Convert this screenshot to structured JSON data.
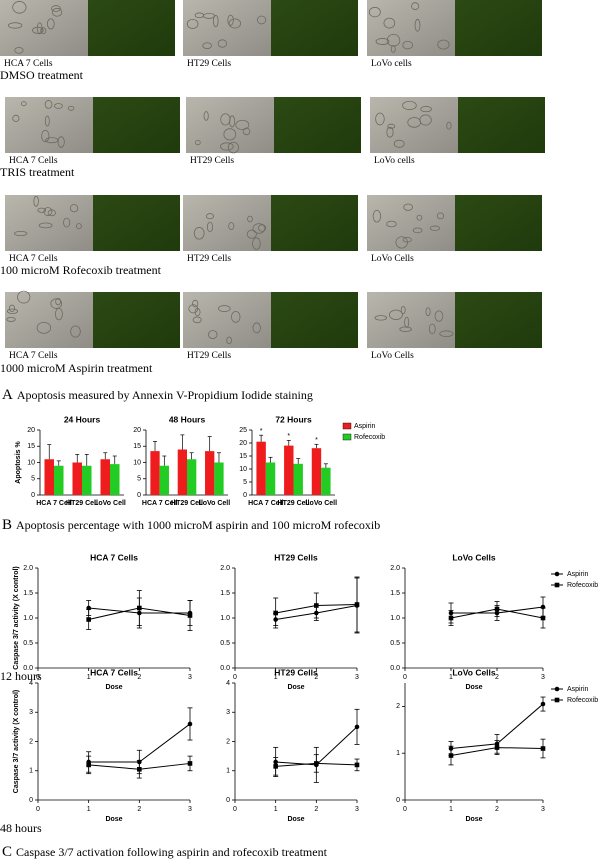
{
  "panel_a": {
    "rows": [
      {
        "labels": [
          "HCA 7 Cells",
          "HT29 Cells",
          "LoVo cells"
        ],
        "treatment": "DMSO treatment"
      },
      {
        "labels": [
          "HCA 7 Cells",
          "HT29 Cells",
          "LoVo cells"
        ],
        "treatment": "TRIS treatment"
      },
      {
        "labels": [
          "HCA 7 Cells",
          "HT29 Cells",
          "LoVo Cells"
        ],
        "treatment": "100 microM Rofecoxib treatment"
      },
      {
        "labels": [
          "HCA 7 Cells",
          "HT29 Cells",
          "LoVo Cells"
        ],
        "treatment": "1000 microM Aspirin treatment"
      }
    ],
    "caption": {
      "letter": "A",
      "text": "Apoptosis measured by Annexin V-Propidium Iodide staining"
    }
  },
  "panel_b": {
    "caption": {
      "letter": "B",
      "text": "Apoptosis percentage with 1000 microM aspirin and 100 microM rofecoxib"
    }
  },
  "panel_c": {
    "time_labels": [
      "12 hours",
      "48 hours"
    ],
    "caption": {
      "letter": "C",
      "text": "Caspase 3/7 activation following aspirin and rofecoxib treatment"
    }
  },
  "chart_data": [
    {
      "type": "bar",
      "title": "24 Hours",
      "ylabel": "Apoptosis %",
      "categories": [
        "HCA 7 Cell",
        "HT29 Cell",
        "LoVo Cell"
      ],
      "series": [
        {
          "name": "Aspirin",
          "color": "#ee1c1c",
          "values": [
            11,
            10,
            11
          ],
          "errors": [
            4.5,
            2.5,
            2
          ]
        },
        {
          "name": "Rofecoxib",
          "color": "#22cc22",
          "values": [
            9,
            9,
            9.5
          ],
          "errors": [
            1.5,
            3.5,
            2.5
          ]
        }
      ],
      "ylim": [
        0,
        20
      ],
      "yticks": [
        0,
        5,
        10,
        15,
        20
      ]
    },
    {
      "type": "bar",
      "title": "48 Hours",
      "categories": [
        "HCA 7 Cell",
        "HT29 Cell",
        "LoVo Cell"
      ],
      "series": [
        {
          "name": "Aspirin",
          "color": "#ee1c1c",
          "values": [
            13.5,
            14,
            13.5
          ],
          "errors": [
            3,
            4.5,
            4.5
          ]
        },
        {
          "name": "Rofecoxib",
          "color": "#22cc22",
          "values": [
            9,
            11,
            10
          ],
          "errors": [
            3,
            2,
            3
          ]
        }
      ],
      "ylim": [
        0,
        20
      ],
      "yticks": [
        0,
        5,
        10,
        15,
        20
      ]
    },
    {
      "type": "bar",
      "title": "72 Hours",
      "categories": [
        "HCA 7 Cell",
        "HT29 Cell",
        "LoVo Cell"
      ],
      "series": [
        {
          "name": "Aspirin",
          "color": "#ee1c1c",
          "values": [
            20.5,
            19,
            18
          ],
          "errors": [
            2.5,
            2,
            1.5
          ]
        },
        {
          "name": "Rofecoxib",
          "color": "#22cc22",
          "values": [
            12.5,
            12,
            10.5
          ],
          "errors": [
            2,
            2,
            1.5
          ]
        }
      ],
      "annotations": [
        "*",
        "*",
        "*"
      ],
      "legend": "right",
      "ylim": [
        0,
        25
      ],
      "yticks": [
        0,
        5,
        10,
        15,
        20,
        25
      ]
    },
    {
      "type": "line",
      "title": "HCA 7 Cells",
      "xlabel": "Dose",
      "ylabel": "Caspase 3/7 activity (X control)",
      "x": [
        1,
        2,
        3
      ],
      "series": [
        {
          "name": "Aspirin",
          "color": "#000000",
          "marker": "circle",
          "values": [
            1.2,
            1.1,
            1.1
          ],
          "errors": [
            0.15,
            0.3,
            0.25
          ]
        },
        {
          "name": "Rofecoxib",
          "color": "#000000",
          "marker": "square",
          "values": [
            0.97,
            1.2,
            1.05
          ],
          "errors": [
            0.2,
            0.35,
            0.3
          ]
        }
      ],
      "xlim": [
        0,
        3
      ],
      "xticks": [
        0,
        1,
        2,
        3
      ],
      "ylim": [
        0,
        2
      ],
      "yticks": [
        {
          "value": 0,
          "label": "0.0"
        },
        {
          "value": 0.5,
          "label": "0.5"
        },
        {
          "value": 1,
          "label": "1.0"
        },
        {
          "value": 1.5,
          "label": "1.5"
        },
        {
          "value": 2,
          "label": "2.0"
        }
      ]
    },
    {
      "type": "line",
      "title": "HT29 Cells",
      "xlabel": "Dose",
      "x": [
        1,
        2,
        3
      ],
      "series": [
        {
          "name": "Aspirin",
          "color": "#000000",
          "marker": "circle",
          "values": [
            0.97,
            1.1,
            1.25
          ],
          "errors": [
            0.12,
            0.15,
            0.55
          ]
        },
        {
          "name": "Rofecoxib",
          "color": "#000000",
          "marker": "square",
          "values": [
            1.1,
            1.25,
            1.27
          ],
          "errors": [
            0.3,
            0.25,
            0.55
          ]
        }
      ],
      "xlim": [
        0,
        3
      ],
      "xticks": [
        0,
        1,
        2,
        3
      ],
      "ylim": [
        0,
        2
      ],
      "yticks": [
        {
          "value": 0,
          "label": "0.0"
        },
        {
          "value": 0.5,
          "label": "0.5"
        },
        {
          "value": 1,
          "label": "1.0"
        },
        {
          "value": 1.5,
          "label": "1.5"
        },
        {
          "value": 2,
          "label": "2.0"
        }
      ]
    },
    {
      "type": "line",
      "title": "LoVo Cells",
      "xlabel": "Dose",
      "x": [
        1,
        2,
        3
      ],
      "legend": "right",
      "series": [
        {
          "name": "Aspirin",
          "color": "#000000",
          "marker": "circle",
          "values": [
            1.1,
            1.1,
            1.22
          ],
          "errors": [
            0.2,
            0.15,
            0.2
          ]
        },
        {
          "name": "Rofecoxib",
          "color": "#000000",
          "marker": "square",
          "values": [
            1.0,
            1.18,
            1.0
          ],
          "errors": [
            0.15,
            0.15,
            0.2
          ]
        }
      ],
      "xlim": [
        0,
        3
      ],
      "xticks": [
        0,
        1,
        2,
        3
      ],
      "ylim": [
        0,
        2
      ],
      "yticks": [
        {
          "value": 0,
          "label": "0.0"
        },
        {
          "value": 0.5,
          "label": "0.5"
        },
        {
          "value": 1,
          "label": "1.0"
        },
        {
          "value": 1.5,
          "label": "1.5"
        },
        {
          "value": 2,
          "label": "2.0"
        }
      ]
    },
    {
      "type": "line",
      "title": "HCA 7 Cells",
      "xlabel": "Dose",
      "ylabel": "Caspase 3/7 activity (X control)",
      "x": [
        1,
        2,
        3
      ],
      "series": [
        {
          "name": "Aspirin",
          "color": "#000000",
          "marker": "circle",
          "values": [
            1.3,
            1.3,
            2.6
          ],
          "errors": [
            0.35,
            0.4,
            0.55
          ]
        },
        {
          "name": "Rofecoxib",
          "color": "#000000",
          "marker": "square",
          "values": [
            1.2,
            1.05,
            1.25
          ],
          "errors": [
            0.3,
            0.3,
            0.25
          ]
        }
      ],
      "xlim": [
        0,
        3
      ],
      "xticks": [
        0,
        1,
        2,
        3
      ],
      "ylim": [
        0,
        4
      ],
      "yticks": [
        0,
        1,
        2,
        3,
        4
      ]
    },
    {
      "type": "line",
      "title": "HT29 Cells",
      "xlabel": "Dose",
      "x": [
        1,
        2,
        3
      ],
      "series": [
        {
          "name": "Aspirin",
          "color": "#000000",
          "marker": "circle",
          "values": [
            1.3,
            1.2,
            2.5
          ],
          "errors": [
            0.5,
            0.6,
            0.6
          ]
        },
        {
          "name": "Rofecoxib",
          "color": "#000000",
          "marker": "square",
          "values": [
            1.15,
            1.25,
            1.2
          ],
          "errors": [
            0.3,
            0.3,
            0.2
          ]
        }
      ],
      "xlim": [
        0,
        3
      ],
      "xticks": [
        0,
        1,
        2,
        3
      ],
      "ylim": [
        0,
        4
      ],
      "yticks": [
        0,
        1,
        2,
        3,
        4
      ]
    },
    {
      "type": "line",
      "title": "LoVo Cells",
      "xlabel": "Dose",
      "x": [
        1,
        2,
        3
      ],
      "legend": "right",
      "series": [
        {
          "name": "Aspirin",
          "color": "#000000",
          "marker": "circle",
          "values": [
            1.1,
            1.2,
            2.05
          ],
          "errors": [
            0.15,
            0.2,
            0.15
          ]
        },
        {
          "name": "Rofecoxib",
          "color": "#000000",
          "marker": "square",
          "values": [
            0.95,
            1.12,
            1.1
          ],
          "errors": [
            0.2,
            0.15,
            0.2
          ]
        }
      ],
      "xlim": [
        0,
        3
      ],
      "xticks": [
        0,
        1,
        2,
        3
      ],
      "ylim": [
        0,
        2.5
      ],
      "yticks": [
        0,
        1,
        2
      ]
    }
  ]
}
